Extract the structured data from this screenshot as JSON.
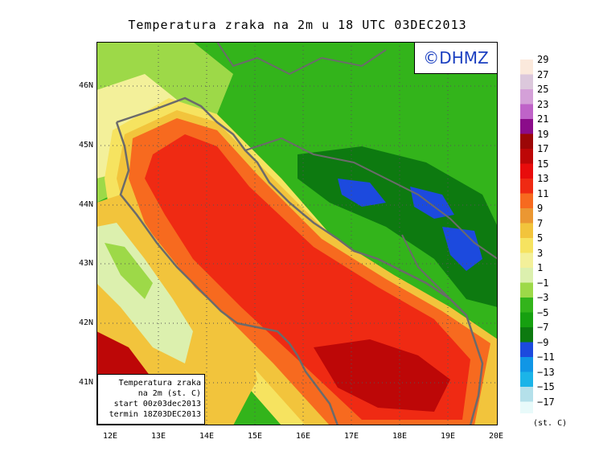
{
  "title": "Temperatura zraka na 2m u 18 UTC 03DEC2013",
  "logo": "©DHMZ",
  "info": {
    "line1": "Temperatura zraka",
    "line2": "na 2m (st. C)",
    "line3": "start 00z03dec2013",
    "line4": "termin 18Z03DEC2013"
  },
  "axes": {
    "x_ticks": [
      "12E",
      "13E",
      "14E",
      "15E",
      "16E",
      "17E",
      "18E",
      "19E",
      "20E"
    ],
    "y_ticks": [
      "46N",
      "45N",
      "44N",
      "43N",
      "42N",
      "41N"
    ]
  },
  "legend": {
    "unit": "(st. C)",
    "labels": [
      "29",
      "27",
      "25",
      "23",
      "21",
      "19",
      "17",
      "15",
      "13",
      "11",
      "9",
      "7",
      "5",
      "3",
      "1",
      "−1",
      "−3",
      "−5",
      "−7",
      "−9",
      "−11",
      "−13",
      "−15",
      "−17"
    ],
    "colors": [
      "#fbe9dc",
      "#dcc8dc",
      "#d4a0d8",
      "#bf63c8",
      "#8b0c8a",
      "#9c0707",
      "#bd0707",
      "#e80c0c",
      "#ef2a13",
      "#f76a1f",
      "#eb9732",
      "#f2c43c",
      "#f6e360",
      "#f3f09a",
      "#dcf0ae",
      "#9dd948",
      "#33b41b",
      "#16a010",
      "#0d7a10",
      "#1c4ade",
      "#1096e6",
      "#1bb4e8",
      "#b4e0ea",
      "#e8fafa"
    ]
  }
}
